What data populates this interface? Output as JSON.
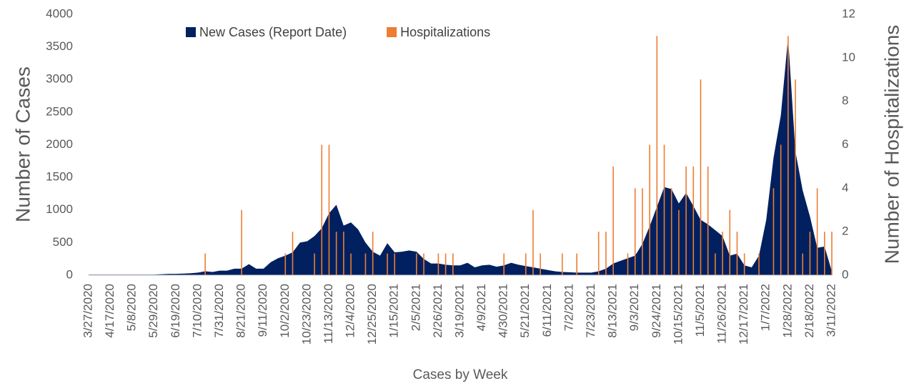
{
  "chart_data": {
    "type": "area-bar",
    "x_label": "Cases by Week",
    "y_label": "Number of Cases",
    "y2_label": "Number of Hospitalizations",
    "categories": [
      "3/27/2020",
      null,
      null,
      "4/17/2020",
      null,
      null,
      "5/8/2020",
      null,
      null,
      "5/29/2020",
      null,
      null,
      "6/19/2020",
      null,
      null,
      "7/10/2020",
      null,
      null,
      "7/31/2020",
      null,
      null,
      "8/21/2020",
      null,
      null,
      "9/11/2020",
      null,
      null,
      "10/2/2020",
      null,
      null,
      "10/23/2020",
      null,
      null,
      "11/13/2020",
      null,
      null,
      "12/4/2020",
      null,
      null,
      "12/25/2020",
      null,
      null,
      "1/15/2021",
      null,
      null,
      "2/5/2021",
      null,
      null,
      "2/26/2021",
      null,
      null,
      "3/19/2021",
      null,
      null,
      "4/9/2021",
      null,
      null,
      "4/30/2021",
      null,
      null,
      "5/21/2021",
      null,
      null,
      "6/11/2021",
      null,
      null,
      "7/2/2021",
      null,
      null,
      "7/23/2021",
      null,
      null,
      "8/13/2021",
      null,
      null,
      "9/3/2021",
      null,
      null,
      "9/24/2021",
      null,
      null,
      "10/15/2021",
      null,
      null,
      "11/5/2021",
      null,
      null,
      "11/26/2021",
      null,
      null,
      "12/17/2021",
      null,
      null,
      "1/7/2022",
      null,
      null,
      "1/28/2022",
      null,
      null,
      "2/18/2022",
      null,
      null,
      "3/11/2022"
    ],
    "series": [
      {
        "name": "New Cases (Report Date)",
        "color": "#002060",
        "type": "area",
        "values": [
          10,
          10,
          10,
          10,
          10,
          10,
          10,
          10,
          10,
          10,
          15,
          20,
          20,
          25,
          30,
          40,
          60,
          50,
          70,
          70,
          100,
          100,
          170,
          100,
          100,
          200,
          260,
          300,
          350,
          500,
          520,
          600,
          720,
          950,
          1080,
          760,
          810,
          700,
          500,
          360,
          300,
          490,
          350,
          360,
          380,
          360,
          250,
          180,
          180,
          160,
          150,
          150,
          190,
          120,
          150,
          160,
          130,
          150,
          190,
          160,
          140,
          120,
          100,
          80,
          60,
          50,
          45,
          40,
          40,
          40,
          60,
          100,
          180,
          220,
          260,
          300,
          480,
          750,
          1050,
          1350,
          1320,
          1100,
          1260,
          1060,
          850,
          780,
          690,
          600,
          300,
          330,
          150,
          120,
          300,
          850,
          1800,
          2450,
          3650,
          1900,
          1300,
          900,
          420,
          440,
          60
        ]
      },
      {
        "name": "Hospitalizations",
        "color": "#ed7d31",
        "type": "bar",
        "axis": "y2",
        "values": [
          0,
          0,
          0,
          0,
          0,
          0,
          0,
          0,
          0,
          0,
          0,
          0,
          0,
          0,
          0,
          0,
          1,
          0,
          0,
          0,
          0,
          3,
          0,
          0,
          0,
          0,
          0,
          1,
          2,
          0,
          0,
          1,
          6,
          6,
          2,
          2,
          1,
          0,
          1,
          2,
          0,
          1,
          1,
          0,
          0,
          1,
          1,
          0,
          1,
          1,
          1,
          0,
          0,
          0,
          0,
          0,
          0,
          1,
          0,
          0,
          1,
          3,
          1,
          0,
          0,
          1,
          0,
          1,
          0,
          0,
          2,
          2,
          5,
          0,
          1,
          4,
          4,
          6,
          11,
          6,
          4,
          3,
          5,
          5,
          9,
          5,
          1,
          2,
          3,
          2,
          1,
          0,
          1,
          0,
          4,
          6,
          11,
          9,
          1,
          2,
          4,
          2,
          2
        ]
      }
    ],
    "ylim": [
      0,
      4000
    ],
    "yticks": [
      0,
      500,
      1000,
      1500,
      2000,
      2500,
      3000,
      3500,
      4000
    ],
    "y2lim": [
      0,
      12
    ],
    "y2ticks": [
      0,
      2,
      4,
      6,
      8,
      10,
      12
    ],
    "legend": "top",
    "grid": false
  }
}
